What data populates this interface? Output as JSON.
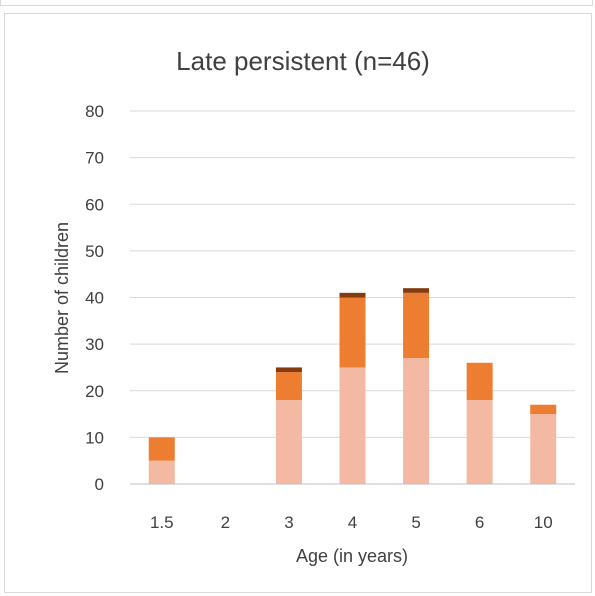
{
  "chart_data": {
    "type": "bar",
    "stacked": true,
    "title": "Late persistent (n=46)",
    "xlabel": "Age (in years)",
    "ylabel": "Number of children",
    "categories": [
      "1.5",
      "2",
      "3",
      "4",
      "5",
      "6",
      "10"
    ],
    "ylim": [
      0,
      80
    ],
    "yticks": [
      0,
      10,
      20,
      30,
      40,
      50,
      60,
      70,
      80
    ],
    "grid": true,
    "legend": "none",
    "series": [
      {
        "color": "#f4b9a2",
        "values": [
          5,
          0,
          18,
          25,
          27,
          18,
          15
        ]
      },
      {
        "color": "#ed7d31",
        "values": [
          5,
          0,
          6,
          15,
          14,
          8,
          2
        ]
      },
      {
        "color": "#843c0c",
        "values": [
          0,
          0,
          1,
          1,
          1,
          0,
          0
        ]
      }
    ]
  }
}
